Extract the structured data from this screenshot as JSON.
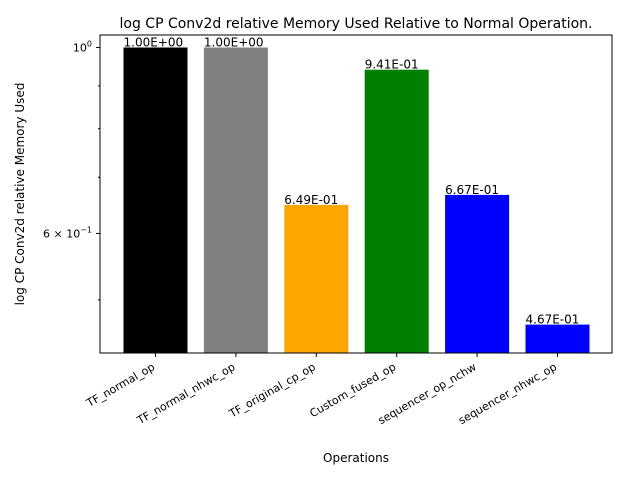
{
  "chart_data": {
    "type": "bar",
    "title": "log CP Conv2d relative Memory Used Relative to Normal Operation.",
    "xlabel": "Operations",
    "ylabel": "log CP Conv2d relative Memory Used",
    "yscale": "log",
    "ylim": [
      0.432,
      1.035
    ],
    "grid": false,
    "categories": [
      "TF_normal_op",
      "TF_normal_nhwc_op",
      "TF_original_cp_op",
      "Custom_fused_op",
      "sequencer_op_nchw",
      "sequencer_nhwc_op"
    ],
    "values": [
      1.0,
      1.0,
      0.649,
      0.941,
      0.667,
      0.467
    ],
    "data_labels": [
      "1.00E+00",
      "1.00E+00",
      "6.49E-01",
      "9.41E-01",
      "6.67E-01",
      "4.67E-01"
    ],
    "colors": [
      "#000000",
      "#808080",
      "#ffa500",
      "#008000",
      "#0000ff",
      "#0000ff"
    ],
    "y_major_ticks": [
      {
        "value": 1.0,
        "base": "10",
        "exp": "0",
        "coef": ""
      },
      {
        "value": 0.6,
        "base": "10",
        "exp": "−1",
        "coef": "6 × "
      }
    ],
    "y_minor_ticks": [
      0.5,
      0.7,
      0.8,
      0.9
    ]
  }
}
